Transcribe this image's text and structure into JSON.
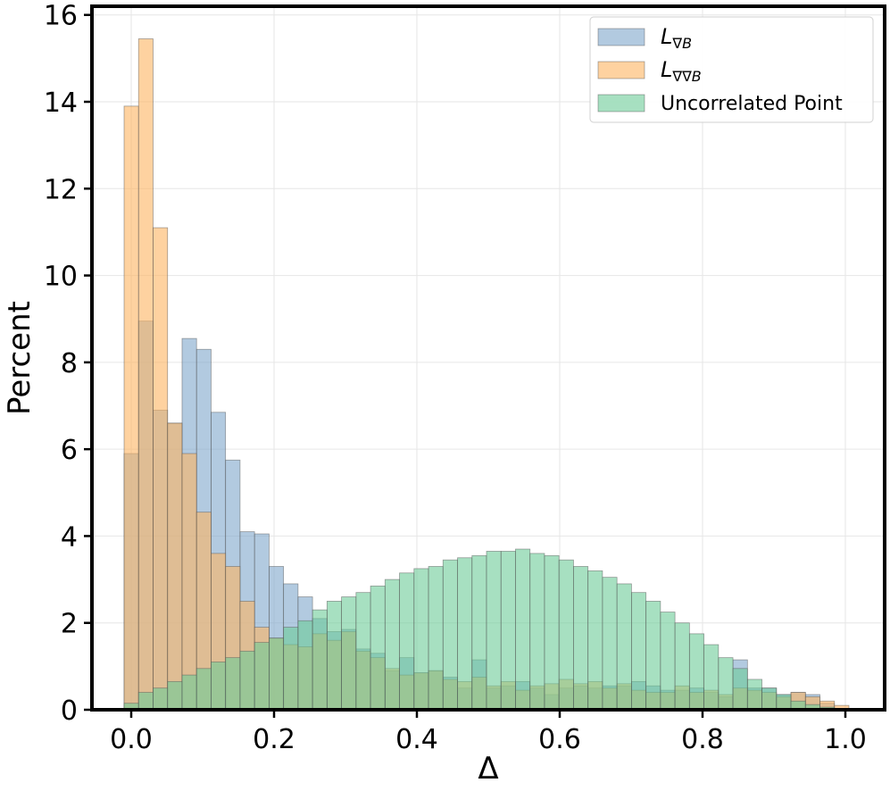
{
  "chart_data": {
    "type": "bar",
    "subtype": "histogram",
    "xlabel": "Δ",
    "ylabel": "Percent",
    "xlim": [
      -0.055,
      1.055
    ],
    "ylim": [
      0,
      16.2
    ],
    "xticks": [
      0.0,
      0.2,
      0.4,
      0.6,
      0.8,
      1.0
    ],
    "xtick_labels": [
      "0.0",
      "0.2",
      "0.4",
      "0.6",
      "0.8",
      "1.0"
    ],
    "yticks": [
      0,
      2,
      4,
      6,
      8,
      10,
      12,
      14,
      16
    ],
    "ytick_labels": [
      "0",
      "2",
      "4",
      "6",
      "8",
      "10",
      "12",
      "14",
      "16"
    ],
    "grid": true,
    "legend_position": "top-right",
    "bin_start": -0.01,
    "bin_width": 0.0203,
    "series": [
      {
        "name": "L∇B",
        "label_base": "L",
        "label_sub": "∇B",
        "color": "#7ea6cc",
        "values": [
          5.9,
          8.95,
          6.9,
          6.6,
          8.55,
          8.3,
          6.85,
          5.75,
          4.1,
          4.05,
          3.3,
          2.9,
          2.6,
          2.1,
          1.8,
          1.85,
          1.4,
          1.3,
          0.9,
          1.2,
          0.85,
          0.9,
          0.75,
          0.5,
          1.15,
          0.5,
          0.55,
          0.65,
          0.5,
          0.35,
          0.5,
          0.55,
          0.5,
          0.55,
          0.55,
          0.65,
          0.55,
          0.45,
          0.45,
          0.5,
          0.4,
          0.3,
          1.15,
          0.5,
          0.5,
          0.35,
          0.4,
          0.35,
          0.15,
          0.0
        ]
      },
      {
        "name": "L∇∇B",
        "label_base": "L",
        "label_sub": "∇∇B",
        "color": "#fdb461",
        "values": [
          13.9,
          15.45,
          11.1,
          6.6,
          5.9,
          4.55,
          3.6,
          3.3,
          2.5,
          1.9,
          1.65,
          1.5,
          1.45,
          1.75,
          1.6,
          1.8,
          1.35,
          1.2,
          0.95,
          0.8,
          0.85,
          0.9,
          0.7,
          0.65,
          0.75,
          0.55,
          0.65,
          0.45,
          0.55,
          0.6,
          0.7,
          0.6,
          0.65,
          0.5,
          0.6,
          0.45,
          0.4,
          0.4,
          0.55,
          0.4,
          0.45,
          0.35,
          0.5,
          0.45,
          0.4,
          0.3,
          0.4,
          0.3,
          0.2,
          0.1
        ]
      },
      {
        "name": "Uncorrelated Point",
        "label_base": "Uncorrelated Point",
        "label_sub": "",
        "color": "#6dcc98",
        "values": [
          0.15,
          0.4,
          0.5,
          0.65,
          0.8,
          0.95,
          1.1,
          1.2,
          1.35,
          1.55,
          1.65,
          1.9,
          2.05,
          2.3,
          2.5,
          2.6,
          2.7,
          2.85,
          3.0,
          3.15,
          3.25,
          3.3,
          3.45,
          3.5,
          3.55,
          3.65,
          3.65,
          3.7,
          3.6,
          3.55,
          3.45,
          3.3,
          3.2,
          3.05,
          2.9,
          2.7,
          2.5,
          2.25,
          2.0,
          1.75,
          1.5,
          1.2,
          0.95,
          0.7,
          0.5,
          0.35,
          0.2,
          0.12,
          0.06,
          0.03
        ]
      }
    ]
  }
}
